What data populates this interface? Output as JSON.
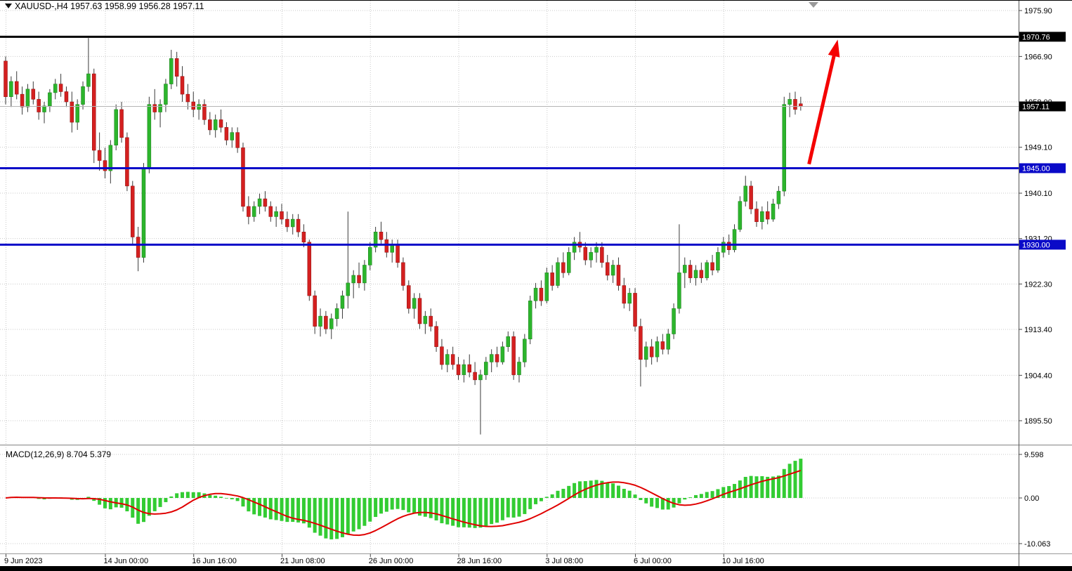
{
  "info_bar": {
    "marker_icon": "▼",
    "text": "XAUUSD-,H4 1957.63 1958.99 1956.28 1957.11"
  },
  "indicator_bar": {
    "text": "MACD(12,26,9) 8.704 5.379"
  },
  "colors": {
    "bull": "#2cb52c",
    "bull_border": "#1e7d1e",
    "bear": "#d42020",
    "bear_border": "#8f1111",
    "wick": "#3a3a3a",
    "grid": "#c9c9c9",
    "current_price_line": "#b4b4b4",
    "badge_black": "#000000",
    "badge_blue": "#0a0ac8",
    "axis_text": "#000000"
  },
  "chart_data": {
    "type": "candlestick",
    "symbol": "XAUUSD-",
    "timeframe": "H4",
    "last_candle": {
      "open": 1957.63,
      "high": 1958.99,
      "low": 1956.28,
      "close": 1957.11
    },
    "price_ticks": [
      "1975.90",
      "1966.90",
      "1958.00",
      "1949.10",
      "1940.10",
      "1931.20",
      "1922.30",
      "1913.40",
      "1904.40",
      "1895.50"
    ],
    "time_labels": [
      {
        "text": "9 Jun 2023",
        "index": 0
      },
      {
        "text": "14 Jun 00:00",
        "index": 18
      },
      {
        "text": "16 Jun 16:00",
        "index": 34
      },
      {
        "text": "21 Jun 08:00",
        "index": 50
      },
      {
        "text": "26 Jun 00:00",
        "index": 66
      },
      {
        "text": "28 Jun 16:00",
        "index": 82
      },
      {
        "text": "3 Jul 08:00",
        "index": 98
      },
      {
        "text": "6 Jul 00:00",
        "index": 114
      },
      {
        "text": "10 Jul 16:00",
        "index": 130
      }
    ],
    "levels": [
      {
        "name": "resistance-line-1970",
        "price": 1970.76,
        "label": "1970.76",
        "color": "#000000",
        "badge": "#000000"
      },
      {
        "name": "support-line-1945",
        "price": 1945.0,
        "label": "1945.00",
        "color": "#0a0ac8",
        "badge": "#0a0ac8"
      },
      {
        "name": "support-line-1930",
        "price": 1930.0,
        "label": "1930.00",
        "color": "#0a0ac8",
        "badge": "#0a0ac8"
      }
    ],
    "current_price": {
      "value": 1957.11,
      "label": "1957.11"
    },
    "arrow": {
      "from_index": 145.5,
      "from_price": 1945.8,
      "to_index": 150.7,
      "to_price": 1970.2,
      "color": "#f40000"
    },
    "ohlc": [
      [
        1966.0,
        1966.9,
        1957.5,
        1959.0
      ],
      [
        1959.0,
        1963.0,
        1957.0,
        1962.0
      ],
      [
        1962.0,
        1964.0,
        1958.5,
        1959.5
      ],
      [
        1959.5,
        1961.0,
        1955.5,
        1957.0
      ],
      [
        1957.0,
        1961.5,
        1956.0,
        1960.5
      ],
      [
        1960.5,
        1962.0,
        1957.5,
        1958.5
      ],
      [
        1958.5,
        1960.0,
        1954.5,
        1956.0
      ],
      [
        1956.0,
        1958.0,
        1953.8,
        1957.2
      ],
      [
        1957.2,
        1960.5,
        1956.0,
        1959.8
      ],
      [
        1959.8,
        1962.5,
        1958.5,
        1961.5
      ],
      [
        1961.5,
        1963.5,
        1959.0,
        1960.0
      ],
      [
        1960.0,
        1961.0,
        1957.0,
        1958.0
      ],
      [
        1958.0,
        1960.0,
        1952.0,
        1954.0
      ],
      [
        1954.0,
        1958.5,
        1952.5,
        1957.5
      ],
      [
        1957.5,
        1962.0,
        1956.5,
        1961.0
      ],
      [
        1961.0,
        1970.5,
        1960.0,
        1963.5
      ],
      [
        1963.5,
        1964.5,
        1946.0,
        1948.5
      ],
      [
        1948.5,
        1952.0,
        1944.5,
        1946.5
      ],
      [
        1946.5,
        1949.0,
        1943.0,
        1944.5
      ],
      [
        1944.5,
        1950.5,
        1942.0,
        1949.5
      ],
      [
        1949.5,
        1957.5,
        1948.5,
        1956.5
      ],
      [
        1956.5,
        1958.0,
        1950.0,
        1951.0
      ],
      [
        1951.0,
        1952.0,
        1940.5,
        1941.5
      ],
      [
        1941.5,
        1942.5,
        1930.0,
        1931.5
      ],
      [
        1931.5,
        1933.5,
        1924.8,
        1927.5
      ],
      [
        1927.5,
        1946.0,
        1926.5,
        1945.0
      ],
      [
        1945.0,
        1959.0,
        1944.0,
        1957.5
      ],
      [
        1957.5,
        1960.5,
        1954.5,
        1956.0
      ],
      [
        1956.0,
        1958.5,
        1953.0,
        1957.5
      ],
      [
        1957.5,
        1962.5,
        1956.0,
        1961.5
      ],
      [
        1961.5,
        1968.2,
        1960.5,
        1966.5
      ],
      [
        1966.5,
        1967.8,
        1961.0,
        1963.0
      ],
      [
        1963.0,
        1965.0,
        1958.0,
        1959.5
      ],
      [
        1959.5,
        1961.5,
        1956.5,
        1958.0
      ],
      [
        1958.0,
        1960.0,
        1955.0,
        1956.5
      ],
      [
        1956.5,
        1958.5,
        1954.5,
        1957.5
      ],
      [
        1957.5,
        1958.5,
        1953.5,
        1954.5
      ],
      [
        1954.5,
        1956.0,
        1951.5,
        1952.5
      ],
      [
        1952.5,
        1955.5,
        1951.0,
        1954.5
      ],
      [
        1954.5,
        1956.5,
        1952.0,
        1953.0
      ],
      [
        1953.0,
        1954.0,
        1949.5,
        1950.5
      ],
      [
        1950.5,
        1953.0,
        1949.0,
        1952.0
      ],
      [
        1952.0,
        1953.0,
        1948.0,
        1949.0
      ],
      [
        1949.0,
        1950.0,
        1936.5,
        1937.5
      ],
      [
        1937.5,
        1939.5,
        1934.0,
        1935.5
      ],
      [
        1935.5,
        1938.5,
        1934.5,
        1937.5
      ],
      [
        1937.5,
        1940.0,
        1936.0,
        1939.0
      ],
      [
        1939.0,
        1940.5,
        1936.5,
        1937.5
      ],
      [
        1937.5,
        1938.5,
        1934.5,
        1935.5
      ],
      [
        1935.5,
        1937.5,
        1933.5,
        1936.5
      ],
      [
        1936.5,
        1938.0,
        1934.0,
        1935.0
      ],
      [
        1935.0,
        1936.5,
        1932.5,
        1933.5
      ],
      [
        1933.5,
        1936.0,
        1932.0,
        1935.0
      ],
      [
        1935.0,
        1936.0,
        1931.5,
        1932.5
      ],
      [
        1932.5,
        1934.0,
        1929.5,
        1930.5
      ],
      [
        1930.5,
        1931.0,
        1919.0,
        1920.0
      ],
      [
        1920.0,
        1921.0,
        1912.5,
        1914.0
      ],
      [
        1914.0,
        1917.5,
        1912.0,
        1916.0
      ],
      [
        1916.0,
        1917.0,
        1912.5,
        1913.5
      ],
      [
        1913.5,
        1916.5,
        1911.5,
        1915.5
      ],
      [
        1915.5,
        1918.5,
        1914.0,
        1917.5
      ],
      [
        1917.5,
        1921.0,
        1915.5,
        1920.0
      ],
      [
        1920.0,
        1936.5,
        1917.5,
        1922.5
      ],
      [
        1922.5,
        1925.0,
        1919.5,
        1924.0
      ],
      [
        1924.0,
        1926.5,
        1921.5,
        1922.5
      ],
      [
        1922.5,
        1927.0,
        1921.0,
        1926.0
      ],
      [
        1926.0,
        1930.5,
        1925.0,
        1929.5
      ],
      [
        1929.5,
        1933.5,
        1928.5,
        1932.5
      ],
      [
        1932.5,
        1934.5,
        1930.0,
        1931.0
      ],
      [
        1931.0,
        1932.5,
        1927.5,
        1928.5
      ],
      [
        1928.5,
        1931.0,
        1926.5,
        1930.0
      ],
      [
        1930.0,
        1931.0,
        1925.5,
        1926.5
      ],
      [
        1926.5,
        1927.5,
        1921.0,
        1922.0
      ],
      [
        1922.0,
        1923.0,
        1916.5,
        1917.5
      ],
      [
        1917.5,
        1920.5,
        1915.5,
        1919.5
      ],
      [
        1919.5,
        1920.5,
        1913.5,
        1914.5
      ],
      [
        1914.5,
        1917.0,
        1912.5,
        1916.0
      ],
      [
        1916.0,
        1917.5,
        1913.0,
        1914.0
      ],
      [
        1914.0,
        1915.0,
        1909.0,
        1910.0
      ],
      [
        1910.0,
        1911.5,
        1905.5,
        1906.5
      ],
      [
        1906.5,
        1909.5,
        1905.0,
        1908.5
      ],
      [
        1908.5,
        1910.0,
        1905.5,
        1906.5
      ],
      [
        1906.5,
        1908.0,
        1903.5,
        1904.5
      ],
      [
        1904.5,
        1907.5,
        1903.0,
        1906.5
      ],
      [
        1906.5,
        1908.5,
        1904.0,
        1905.0
      ],
      [
        1905.0,
        1907.0,
        1902.5,
        1903.5
      ],
      [
        1903.5,
        1905.5,
        1892.8,
        1904.5
      ],
      [
        1904.5,
        1908.0,
        1903.5,
        1907.0
      ],
      [
        1907.0,
        1909.5,
        1905.0,
        1908.5
      ],
      [
        1908.5,
        1910.0,
        1906.0,
        1907.0
      ],
      [
        1907.0,
        1911.0,
        1906.5,
        1910.0
      ],
      [
        1910.0,
        1913.0,
        1909.0,
        1912.0
      ],
      [
        1912.0,
        1913.0,
        1903.5,
        1904.5
      ],
      [
        1904.5,
        1908.0,
        1903.0,
        1907.0
      ],
      [
        1907.0,
        1912.5,
        1906.0,
        1911.5
      ],
      [
        1911.5,
        1920.0,
        1910.5,
        1919.0
      ],
      [
        1919.0,
        1922.5,
        1917.5,
        1921.5
      ],
      [
        1921.5,
        1923.0,
        1918.0,
        1919.0
      ],
      [
        1919.0,
        1925.5,
        1918.5,
        1924.5
      ],
      [
        1924.5,
        1926.0,
        1921.0,
        1922.0
      ],
      [
        1922.0,
        1927.5,
        1921.5,
        1926.5
      ],
      [
        1926.5,
        1928.5,
        1923.5,
        1924.5
      ],
      [
        1924.5,
        1929.5,
        1924.0,
        1928.5
      ],
      [
        1928.5,
        1931.5,
        1927.0,
        1930.5
      ],
      [
        1930.5,
        1932.5,
        1928.5,
        1929.5
      ],
      [
        1929.5,
        1930.5,
        1926.0,
        1927.0
      ],
      [
        1927.0,
        1929.5,
        1925.5,
        1928.5
      ],
      [
        1928.5,
        1930.5,
        1926.5,
        1929.5
      ],
      [
        1929.5,
        1930.5,
        1925.5,
        1926.5
      ],
      [
        1926.5,
        1928.0,
        1923.0,
        1924.0
      ],
      [
        1924.0,
        1927.0,
        1922.5,
        1926.0
      ],
      [
        1926.0,
        1927.5,
        1921.0,
        1922.0
      ],
      [
        1922.0,
        1923.5,
        1917.5,
        1918.5
      ],
      [
        1918.5,
        1921.5,
        1917.0,
        1920.5
      ],
      [
        1920.5,
        1921.5,
        1913.0,
        1914.0
      ],
      [
        1914.0,
        1915.5,
        1902.2,
        1907.5
      ],
      [
        1907.5,
        1911.0,
        1906.0,
        1910.0
      ],
      [
        1910.0,
        1911.5,
        1906.5,
        1908.0
      ],
      [
        1908.0,
        1912.0,
        1907.0,
        1911.0
      ],
      [
        1911.0,
        1912.5,
        1908.5,
        1909.5
      ],
      [
        1909.5,
        1913.5,
        1908.5,
        1912.5
      ],
      [
        1912.5,
        1918.5,
        1911.5,
        1917.5
      ],
      [
        1917.5,
        1934.0,
        1916.5,
        1924.5
      ],
      [
        1924.5,
        1927.5,
        1921.5,
        1926.0
      ],
      [
        1926.0,
        1927.0,
        1922.5,
        1923.5
      ],
      [
        1923.5,
        1926.0,
        1922.0,
        1925.0
      ],
      [
        1925.0,
        1926.5,
        1922.5,
        1923.5
      ],
      [
        1923.5,
        1927.0,
        1923.0,
        1926.5
      ],
      [
        1926.5,
        1928.0,
        1924.0,
        1925.0
      ],
      [
        1925.0,
        1929.5,
        1924.5,
        1928.5
      ],
      [
        1928.5,
        1931.5,
        1927.5,
        1930.5
      ],
      [
        1930.5,
        1932.0,
        1928.0,
        1929.0
      ],
      [
        1929.0,
        1934.0,
        1928.5,
        1933.0
      ],
      [
        1933.0,
        1939.5,
        1932.5,
        1938.5
      ],
      [
        1938.5,
        1943.5,
        1937.5,
        1941.5
      ],
      [
        1941.5,
        1942.5,
        1936.0,
        1937.0
      ],
      [
        1937.0,
        1938.5,
        1933.5,
        1934.5
      ],
      [
        1934.5,
        1937.5,
        1933.0,
        1936.5
      ],
      [
        1936.5,
        1938.5,
        1934.0,
        1935.0
      ],
      [
        1935.0,
        1939.0,
        1934.5,
        1938.0
      ],
      [
        1938.0,
        1941.5,
        1937.0,
        1940.5
      ],
      [
        1940.5,
        1959.0,
        1939.5,
        1957.5
      ],
      [
        1957.5,
        1959.8,
        1955.0,
        1958.5
      ],
      [
        1958.5,
        1960.0,
        1955.5,
        1956.5
      ],
      [
        1957.63,
        1958.99,
        1956.28,
        1957.11
      ]
    ],
    "macd": {
      "type": "bar+line",
      "params": "12,26,9",
      "macd_value": 8.704,
      "signal_value": 5.379,
      "ticks": [
        {
          "label": "9.598",
          "value": 9.598
        },
        {
          "label": "0.00",
          "value": 0
        },
        {
          "label": "-10.063",
          "value": -10.063
        }
      ],
      "histogram_color": "#33cc33",
      "signal_color": "#e00000"
    }
  }
}
